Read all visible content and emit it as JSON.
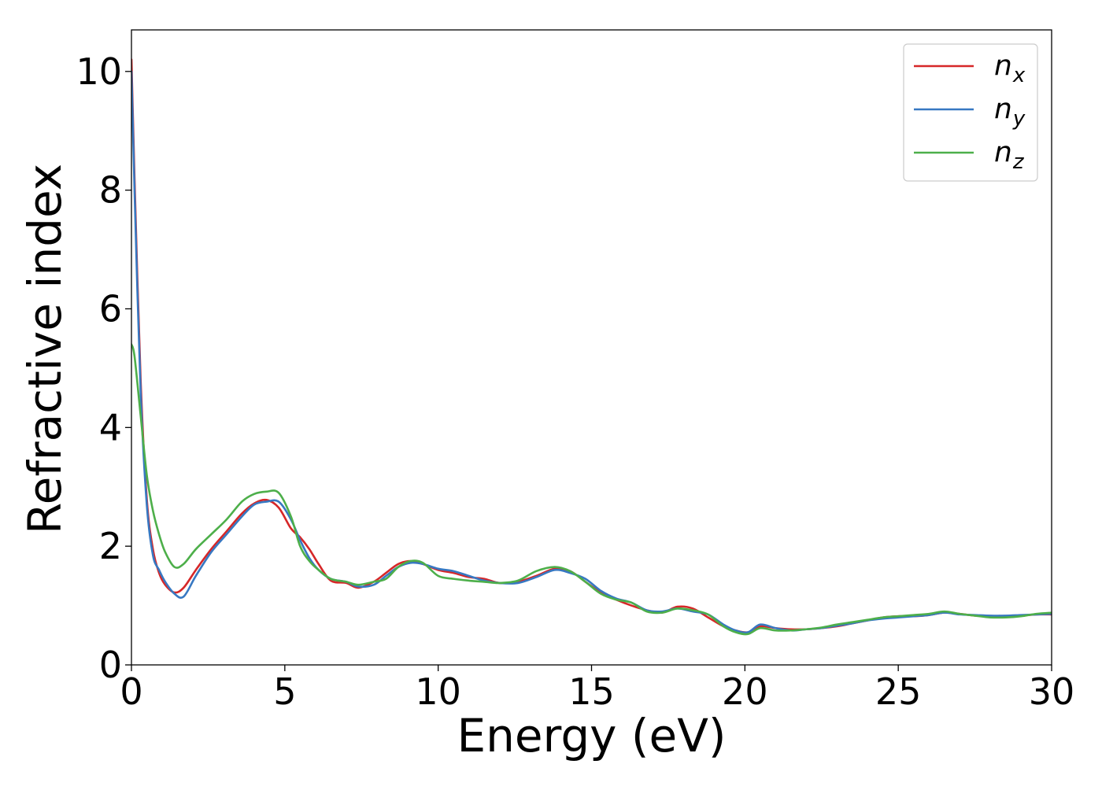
{
  "chart_data": {
    "type": "line",
    "xlabel": "Energy (eV)",
    "ylabel": "Refractive index",
    "xlim": [
      0,
      30
    ],
    "ylim": [
      0,
      10.7
    ],
    "xticks": [
      0,
      5,
      10,
      15,
      20,
      25,
      30
    ],
    "yticks": [
      0,
      2,
      4,
      6,
      8,
      10
    ],
    "grid": false,
    "legend_position": "top-right",
    "legend": [
      {
        "base": "n",
        "sub": "x"
      },
      {
        "base": "n",
        "sub": "y"
      },
      {
        "base": "n",
        "sub": "z"
      }
    ],
    "series": [
      {
        "name": "n_x",
        "color": "#d62728",
        "x": [
          0,
          0.1,
          0.3,
          0.5,
          0.7,
          0.9,
          1.1,
          1.4,
          1.7,
          2.1,
          2.6,
          3.1,
          3.6,
          4.0,
          4.4,
          4.8,
          5.2,
          5.5,
          5.8,
          6.1,
          6.5,
          7.0,
          7.4,
          7.9,
          8.3,
          8.7,
          9.1,
          9.5,
          10.0,
          10.5,
          11.0,
          11.5,
          12.0,
          12.6,
          13.2,
          13.8,
          14.3,
          14.8,
          15.3,
          15.8,
          16.3,
          16.8,
          17.3,
          17.8,
          18.3,
          18.8,
          19.3,
          19.7,
          20.1,
          20.5,
          21.0,
          21.5,
          22.0,
          22.5,
          23.0,
          23.5,
          24.0,
          24.5,
          25.0,
          25.5,
          26.0,
          26.5,
          27.0,
          27.5,
          28.0,
          28.5,
          29.0,
          29.5,
          30.0
        ],
        "values": [
          10.2,
          8.2,
          4.8,
          2.8,
          1.95,
          1.55,
          1.35,
          1.22,
          1.3,
          1.6,
          1.95,
          2.25,
          2.55,
          2.72,
          2.78,
          2.65,
          2.3,
          2.15,
          1.95,
          1.7,
          1.42,
          1.38,
          1.3,
          1.4,
          1.55,
          1.7,
          1.75,
          1.7,
          1.6,
          1.55,
          1.48,
          1.45,
          1.38,
          1.4,
          1.5,
          1.62,
          1.58,
          1.4,
          1.22,
          1.1,
          1.0,
          0.92,
          0.88,
          0.98,
          0.95,
          0.8,
          0.65,
          0.58,
          0.55,
          0.65,
          0.62,
          0.6,
          0.6,
          0.62,
          0.65,
          0.7,
          0.75,
          0.8,
          0.82,
          0.82,
          0.84,
          0.88,
          0.86,
          0.83,
          0.82,
          0.82,
          0.83,
          0.85,
          0.85
        ]
      },
      {
        "name": "n_y",
        "color": "#3778c2",
        "x": [
          0,
          0.1,
          0.3,
          0.5,
          0.7,
          0.9,
          1.1,
          1.4,
          1.7,
          2.1,
          2.6,
          3.1,
          3.6,
          4.0,
          4.4,
          4.8,
          5.2,
          5.5,
          5.8,
          6.1,
          6.5,
          7.0,
          7.4,
          7.9,
          8.3,
          8.7,
          9.1,
          9.5,
          10.0,
          10.5,
          11.0,
          11.5,
          12.0,
          12.6,
          13.2,
          13.8,
          14.3,
          14.8,
          15.3,
          15.8,
          16.3,
          16.8,
          17.3,
          17.8,
          18.3,
          18.8,
          19.3,
          19.7,
          20.1,
          20.5,
          21.0,
          21.5,
          22.0,
          22.5,
          23.0,
          23.5,
          24.0,
          24.5,
          25.0,
          25.5,
          26.0,
          26.5,
          27.0,
          27.5,
          28.0,
          28.5,
          29.0,
          29.5,
          30.0
        ],
        "values": [
          10.0,
          8.0,
          4.6,
          2.7,
          1.85,
          1.6,
          1.4,
          1.2,
          1.15,
          1.5,
          1.9,
          2.2,
          2.5,
          2.7,
          2.75,
          2.75,
          2.45,
          2.1,
          1.8,
          1.6,
          1.45,
          1.4,
          1.32,
          1.35,
          1.5,
          1.65,
          1.72,
          1.7,
          1.62,
          1.58,
          1.5,
          1.42,
          1.38,
          1.38,
          1.48,
          1.6,
          1.55,
          1.45,
          1.25,
          1.12,
          1.05,
          0.92,
          0.9,
          0.95,
          0.9,
          0.85,
          0.68,
          0.58,
          0.55,
          0.68,
          0.62,
          0.58,
          0.6,
          0.62,
          0.66,
          0.7,
          0.75,
          0.78,
          0.8,
          0.82,
          0.84,
          0.88,
          0.85,
          0.84,
          0.83,
          0.83,
          0.84,
          0.85,
          0.86
        ]
      },
      {
        "name": "n_z",
        "color": "#4daf4a",
        "x": [
          0,
          0.1,
          0.3,
          0.5,
          0.7,
          0.9,
          1.1,
          1.4,
          1.7,
          2.1,
          2.6,
          3.1,
          3.6,
          4.0,
          4.4,
          4.8,
          5.2,
          5.5,
          5.8,
          6.1,
          6.5,
          7.0,
          7.4,
          7.9,
          8.3,
          8.7,
          9.1,
          9.5,
          10.0,
          10.5,
          11.0,
          11.5,
          12.0,
          12.6,
          13.2,
          13.8,
          14.3,
          14.8,
          15.3,
          15.8,
          16.3,
          16.8,
          17.3,
          17.8,
          18.3,
          18.8,
          19.3,
          19.7,
          20.1,
          20.5,
          21.0,
          21.5,
          22.0,
          22.5,
          23.0,
          23.5,
          24.0,
          24.5,
          25.0,
          25.5,
          26.0,
          26.5,
          27.0,
          27.5,
          28.0,
          28.5,
          29.0,
          29.5,
          30.0
        ],
        "values": [
          5.4,
          5.2,
          4.2,
          3.2,
          2.6,
          2.2,
          1.9,
          1.65,
          1.7,
          1.95,
          2.2,
          2.45,
          2.75,
          2.88,
          2.92,
          2.9,
          2.5,
          2.0,
          1.75,
          1.6,
          1.45,
          1.4,
          1.35,
          1.4,
          1.45,
          1.65,
          1.75,
          1.72,
          1.5,
          1.45,
          1.42,
          1.4,
          1.38,
          1.42,
          1.58,
          1.65,
          1.58,
          1.4,
          1.2,
          1.1,
          1.05,
          0.9,
          0.88,
          0.95,
          0.92,
          0.85,
          0.65,
          0.55,
          0.52,
          0.62,
          0.58,
          0.58,
          0.6,
          0.63,
          0.68,
          0.72,
          0.76,
          0.8,
          0.82,
          0.84,
          0.86,
          0.9,
          0.86,
          0.83,
          0.8,
          0.8,
          0.82,
          0.86,
          0.88
        ]
      }
    ]
  }
}
